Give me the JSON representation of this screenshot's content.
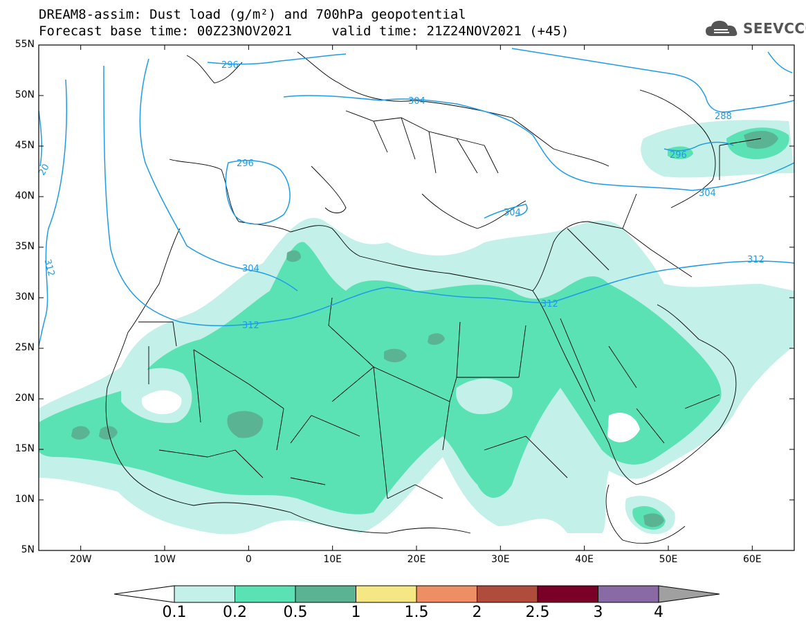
{
  "title": {
    "line1": "DREAM8-assim: Dust load (g/m²) and 700hPa geopotential",
    "line2": "Forecast base time: 00Z23NOV2021     valid time: 21Z24NOV2021 (+45)"
  },
  "logo": {
    "icon": "cloud-icon",
    "text": "SEEVCCC"
  },
  "map": {
    "lat_range": [
      5,
      55
    ],
    "lon_range": [
      -25,
      65
    ],
    "lat_ticks": [
      "55N",
      "50N",
      "45N",
      "40N",
      "35N",
      "30N",
      "25N",
      "20N",
      "15N",
      "10N",
      "5N"
    ],
    "lon_ticks": [
      "20W",
      "10W",
      "0",
      "10E",
      "20E",
      "30E",
      "40E",
      "50E",
      "60E"
    ]
  },
  "contours": {
    "color": "#1e9be8",
    "labels": [
      "296",
      "304",
      "296",
      "304",
      "296",
      "288",
      "304",
      "20",
      "312",
      "304",
      "312",
      "312",
      "312"
    ]
  },
  "colorbar": {
    "labels": [
      "0.1",
      "0.2",
      "0.5",
      "1",
      "1.5",
      "2",
      "2.5",
      "3",
      "4"
    ],
    "colors": [
      "#ffffff",
      "#c3f0e8",
      "#5ae1b4",
      "#5ab493",
      "#f4e784",
      "#ee8e65",
      "#b04c3c",
      "#7b0028",
      "#8a6aa4",
      "#a0a0a0"
    ]
  }
}
